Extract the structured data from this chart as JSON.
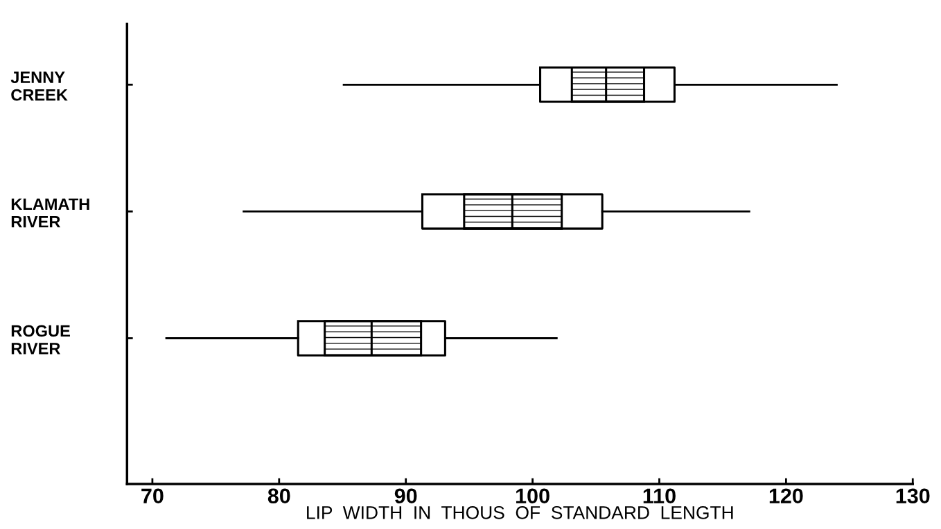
{
  "chart_data": {
    "type": "box",
    "orientation": "horizontal",
    "categories": [
      "JENNY\nCREEK",
      "KLAMATH\nRIVER",
      "ROGUE\nRIVER"
    ],
    "xlabel": "LIP  WIDTH  IN  THOUS  OF  STANDARD  LENGTH",
    "xlim": [
      68,
      130
    ],
    "xticks": [
      70,
      80,
      90,
      100,
      110,
      120,
      130
    ],
    "grid": false,
    "series": [
      {
        "color": "#000000",
        "boxes": [
          {
            "low": 85.1,
            "q1": 100.6,
            "median": 105.8,
            "q3": 111.2,
            "high": 124.0
          },
          {
            "low": 77.2,
            "q1": 91.3,
            "median": 98.4,
            "q3": 105.5,
            "high": 117.1
          },
          {
            "low": 71.1,
            "q1": 81.5,
            "median": 87.3,
            "q3": 93.1,
            "high": 101.9
          }
        ]
      },
      {
        "type": "bar",
        "color": "#000000",
        "base": [
          103.1,
          94.6,
          83.6
        ],
        "values": [
          5.7,
          7.7,
          7.6
        ]
      }
    ]
  }
}
